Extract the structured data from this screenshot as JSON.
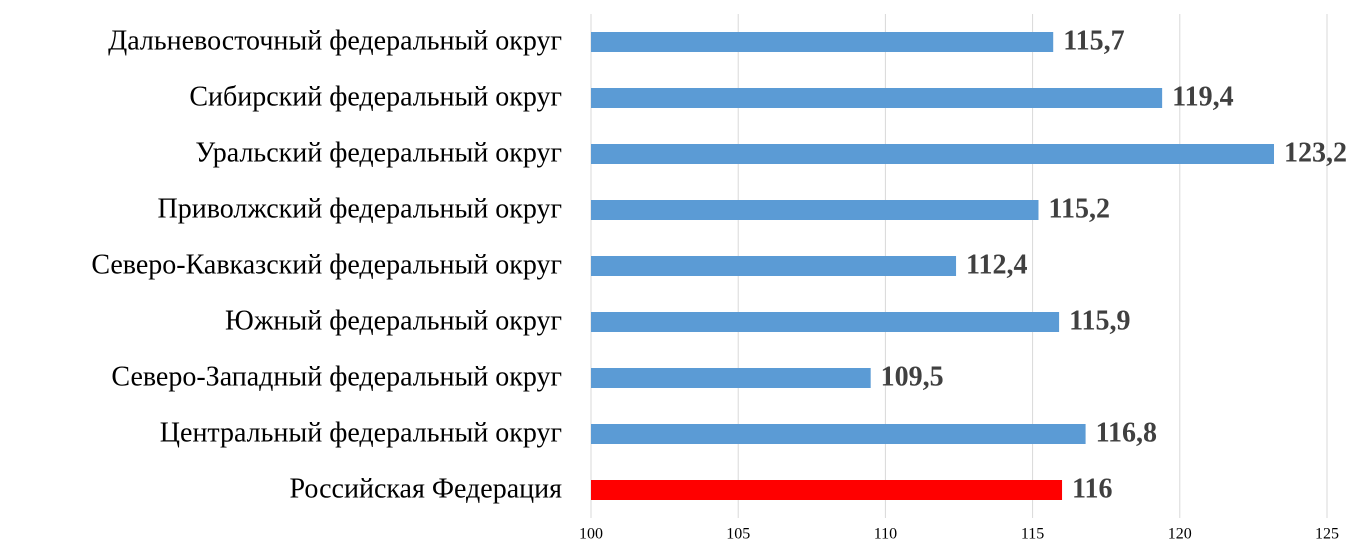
{
  "chart_data": {
    "type": "barh",
    "categories": [
      "Дальневосточный федеральный округ",
      "Сибирский федеральный округ",
      "Уральский федеральный округ",
      "Приволжский федеральный округ",
      "Северо-Кавказский федеральный округ",
      "Южный федеральный округ",
      "Северо-Западный федеральный округ",
      "Центральный федеральный округ",
      "Российская Федерация"
    ],
    "values": [
      115.7,
      119.4,
      123.2,
      115.2,
      112.4,
      115.9,
      109.5,
      116.8,
      116
    ],
    "value_labels": [
      "115,7",
      "119,4",
      "123,2",
      "115,2",
      "112,4",
      "115,9",
      "109,5",
      "116,8",
      "116"
    ],
    "colors": [
      "#5b9bd5",
      "#5b9bd5",
      "#5b9bd5",
      "#5b9bd5",
      "#5b9bd5",
      "#5b9bd5",
      "#5b9bd5",
      "#5b9bd5",
      "#ff0000"
    ],
    "xlim": [
      100,
      125
    ],
    "xticks": [
      100,
      105,
      110,
      115,
      120,
      125
    ],
    "grid": true
  }
}
